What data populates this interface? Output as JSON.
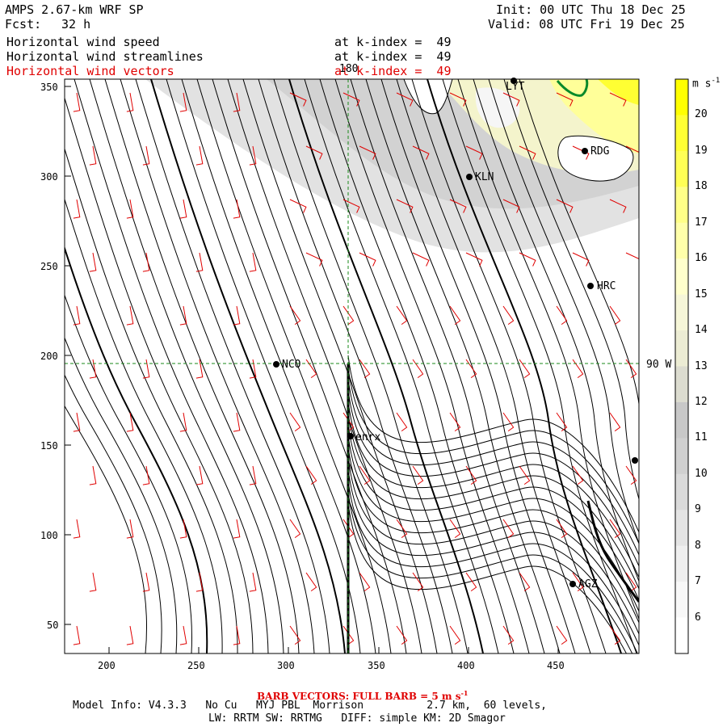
{
  "header": {
    "model": "AMPS 2.67-km WRF SP",
    "fcst_label": "Fcst:",
    "fcst_value": "32 h",
    "init": "Init: 00 UTC Thu 18 Dec 25",
    "valid": "Valid: 08 UTC Fri 19 Dec 25",
    "fields": [
      {
        "name": "Horizontal wind speed",
        "level": "at k-index =  49",
        "color": "#000000"
      },
      {
        "name": "Horizontal wind streamlines",
        "level": "at k-index =  49",
        "color": "#000000"
      },
      {
        "name": "Horizontal wind vectors",
        "level": "at k-index =  49",
        "color": "#e00000"
      }
    ]
  },
  "axes": {
    "x_ticks": [
      "200",
      "250",
      "300",
      "350",
      "400",
      "450"
    ],
    "y_ticks": [
      "350",
      "300",
      "250",
      "200",
      "150",
      "100",
      "50"
    ],
    "meridian_label": "180",
    "parallel_label": "90 W"
  },
  "stations": [
    "NCO",
    "enrx",
    "KLN",
    "RDG",
    "HRC",
    "AGZ",
    "LYT"
  ],
  "colorbar": {
    "unit": "m s",
    "unit_exp": "-1",
    "labels": [
      "20",
      "19",
      "18",
      "17",
      "16",
      "15",
      "14",
      "13",
      "12",
      "11",
      "10",
      "9",
      "8",
      "7",
      "6"
    ],
    "colors": [
      "#ffff00",
      "#ffff33",
      "#ffff55",
      "#ffff88",
      "#ffffaa",
      "#ffffcc",
      "#f6f6d8",
      "#ececd4",
      "#dcdcd0",
      "#c8c8c8",
      "#d0d0d0",
      "#dadada",
      "#e4e4e4",
      "#efefef",
      "#f8f8f8",
      "#ffffff"
    ]
  },
  "footer": {
    "barb_note": "BARB VECTORS: FULL BARB = 5 m s",
    "barb_exp": "-1",
    "model_info": "Model Info: V4.3.3   No Cu   MYJ PBL  Morrison          2.7 km,  60 levels,",
    "physics": "LW: RRTM SW: RRTMG   DIFF: simple KM: 2D Smagor"
  }
}
